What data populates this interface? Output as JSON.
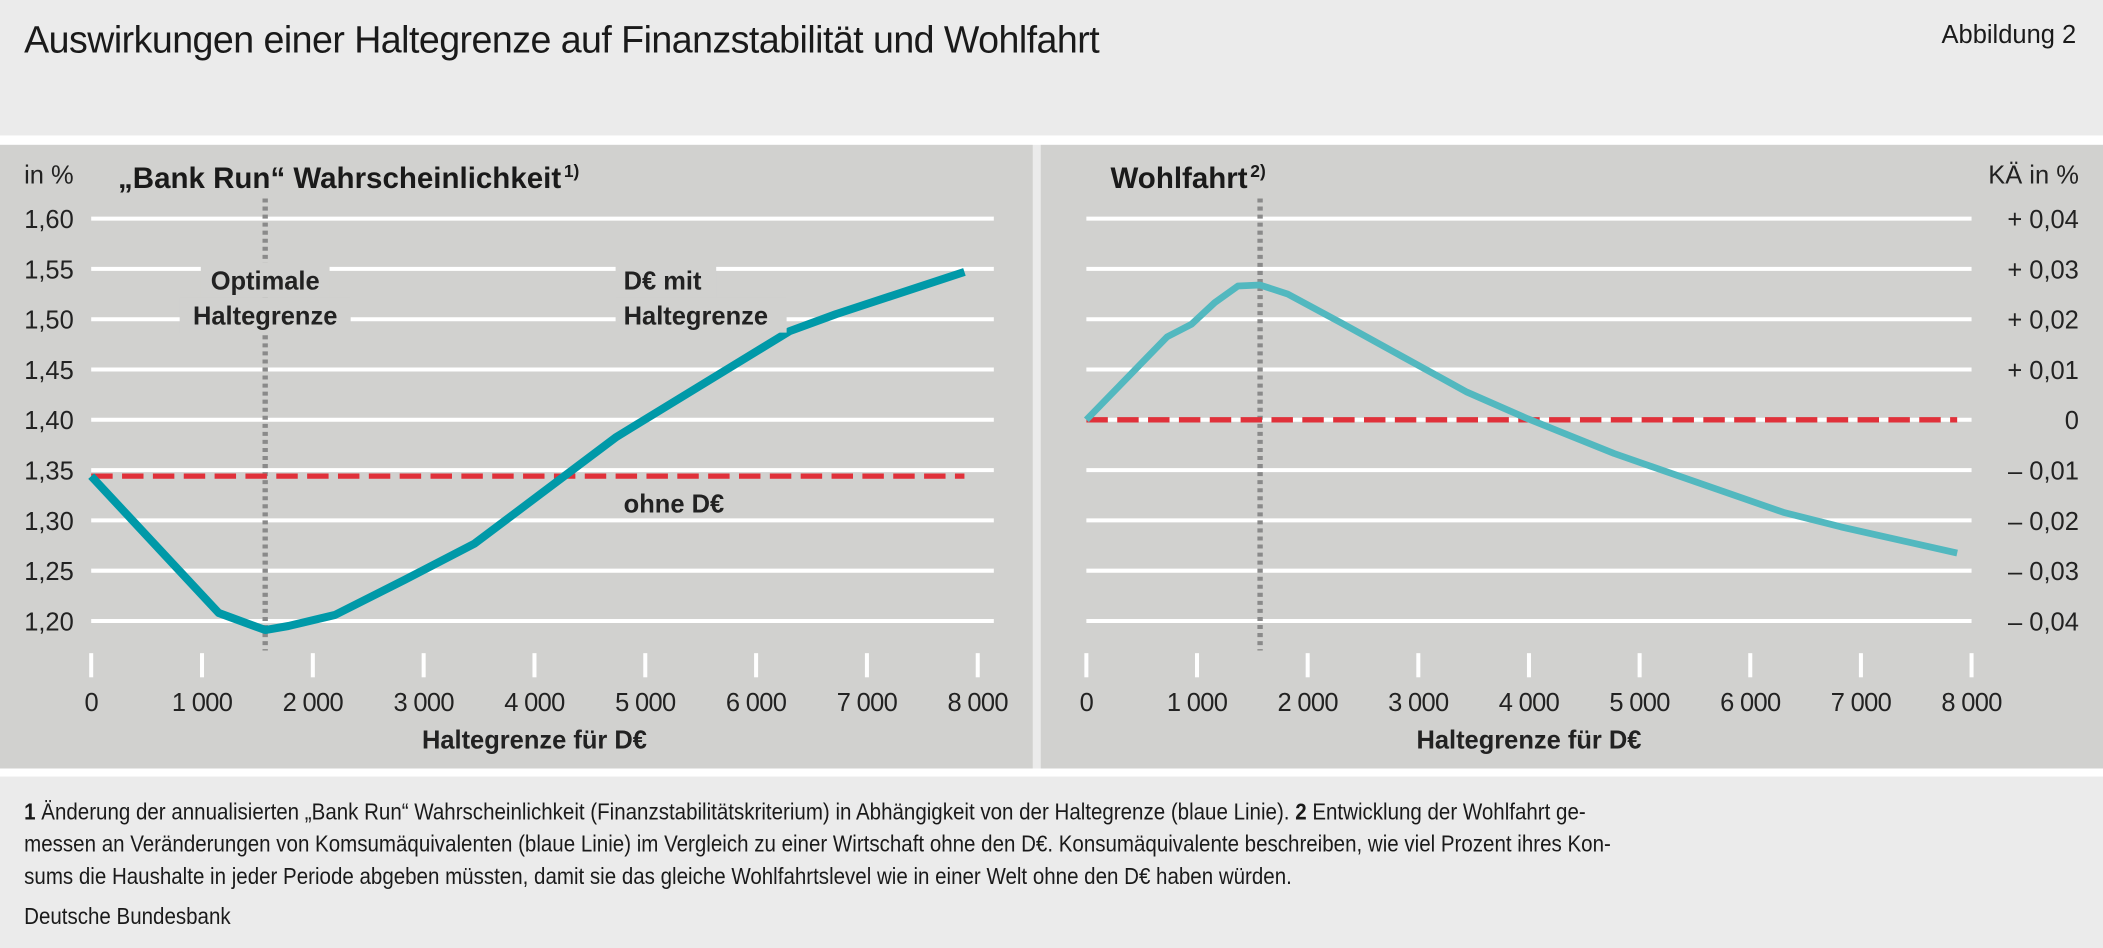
{
  "header": {
    "title": "Auswirkungen einer Haltegrenze auf Finanzstabilität und Wohlfahrt",
    "figure_label": "Abbildung 2"
  },
  "colors": {
    "background": "#ebebeb",
    "panel": "#d1d1cf",
    "grid": "#ffffff",
    "left_line": "#0099a8",
    "right_line": "#52b8bf",
    "reference": "#e0313a",
    "optimum": "#8a8a8a"
  },
  "chart_data": [
    {
      "type": "line",
      "title": "„Bank Run“ Wahrscheinlichkeit",
      "title_note": "1)",
      "ylabel": "in %",
      "xlabel": "Haltegrenze für D€",
      "xlim": [
        0,
        8000
      ],
      "ylim": [
        1.2,
        1.6
      ],
      "xticks": [
        "0",
        "1 000",
        "2 000",
        "3 000",
        "4 000",
        "5 000",
        "6 000",
        "7 000",
        "8 000"
      ],
      "yticks": [
        "1,60",
        "1,55",
        "1,50",
        "1,45",
        "1,40",
        "1,35",
        "1,30",
        "1,25",
        "1,20"
      ],
      "grid": true,
      "series": [
        {
          "name": "D€ mit Haltegrenze",
          "label_lines": [
            "D€ mit",
            "Haltegrenze"
          ],
          "x": [
            0,
            1150,
            1570,
            1780,
            2200,
            2830,
            3460,
            4740,
            6300,
            6720,
            7880
          ],
          "y": [
            1.344,
            1.208,
            1.191,
            1.195,
            1.206,
            1.241,
            1.277,
            1.383,
            1.488,
            1.505,
            1.547
          ]
        },
        {
          "name": "ohne D€",
          "x": [
            0,
            7880
          ],
          "y": [
            1.344,
            1.344
          ]
        }
      ],
      "optimum": {
        "x": 1570,
        "label_lines": [
          "Optimale",
          "Haltegrenze"
        ]
      }
    },
    {
      "type": "line",
      "title": "Wohlfahrt",
      "title_note": "2)",
      "ylabel": "KÄ in %",
      "xlabel": "Haltegrenze für D€",
      "xlim": [
        0,
        8000
      ],
      "ylim": [
        -0.04,
        0.04
      ],
      "xticks": [
        "0",
        "1 000",
        "2 000",
        "3 000",
        "4 000",
        "5 000",
        "6 000",
        "7 000",
        "8 000"
      ],
      "yticks": [
        "+ 0,04",
        "+ 0,03",
        "+ 0,02",
        "+ 0,01",
        "0",
        "– 0,01",
        "– 0,02",
        "– 0,03",
        "– 0,04"
      ],
      "grid": true,
      "series": [
        {
          "x": [
            0,
            730,
            950,
            1160,
            1370,
            1570,
            1820,
            2300,
            3440,
            3990,
            4770,
            6300,
            6820,
            7870
          ],
          "y": [
            0,
            0.0165,
            0.019,
            0.0233,
            0.0266,
            0.0268,
            0.025,
            0.0193,
            0.0055,
            0.0002,
            -0.0067,
            -0.0184,
            -0.0213,
            -0.0265
          ]
        },
        {
          "x": [
            0,
            7870
          ],
          "y": [
            0,
            0
          ]
        }
      ],
      "optimum": {
        "x": 1570
      }
    }
  ],
  "footnotes": {
    "n1": "1",
    "line1a": " Änderung der annualisierten „Bank Run“ Wahrscheinlichkeit (Finanzstabilitätskriterium) in Abhängigkeit von der Haltegrenze (blaue Linie). ",
    "n2": "2",
    "line1b": " Entwicklung der Wohlfahrt ge-",
    "line2": "messen an Veränderungen von Komsumäquivalenten (blaue Linie) im Vergleich zu einer Wirtschaft ohne den D€. Konsumäquivalente beschreiben, wie viel Prozent ihres Kon-",
    "line3": "sums die Haushalte in jeder Periode abgeben müssten, damit sie das gleiche Wohlfahrtslevel wie in einer Welt ohne den D€ haben würden.",
    "source": "Deutsche Bundesbank"
  }
}
